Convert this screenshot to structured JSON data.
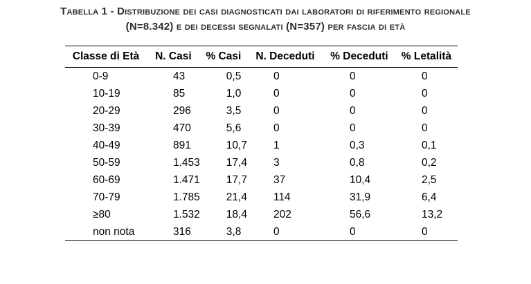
{
  "caption": {
    "line1": "Tabella 1 - Distribuzione dei casi diagnosticati dai laboratori di riferimento regionale",
    "line2": "(N=8.342) e dei decessi segnalati (N=357) per fascia di età"
  },
  "table": {
    "headers": [
      "Classe di Età",
      "N. Casi",
      "% Casi",
      "N. Deceduti",
      "% Deceduti",
      "% Letalità"
    ],
    "rows": [
      [
        "0-9",
        "43",
        "0,5",
        "0",
        "0",
        "0"
      ],
      [
        "10-19",
        "85",
        "1,0",
        "0",
        "0",
        "0"
      ],
      [
        "20-29",
        "296",
        "3,5",
        "0",
        "0",
        "0"
      ],
      [
        "30-39",
        "470",
        "5,6",
        "0",
        "0",
        "0"
      ],
      [
        "40-49",
        "891",
        "10,7",
        "1",
        "0,3",
        "0,1"
      ],
      [
        "50-59",
        "1.453",
        "17,4",
        "3",
        "0,8",
        "0,2"
      ],
      [
        "60-69",
        "1.471",
        "17,7",
        "37",
        "10,4",
        "2,5"
      ],
      [
        "70-79",
        "1.785",
        "21,4",
        "114",
        "31,9",
        "6,4"
      ],
      [
        "≥80",
        "1.532",
        "18,4",
        "202",
        "56,6",
        "13,2"
      ],
      [
        "non nota",
        "316",
        "3,8",
        "0",
        "0",
        "0"
      ]
    ]
  }
}
